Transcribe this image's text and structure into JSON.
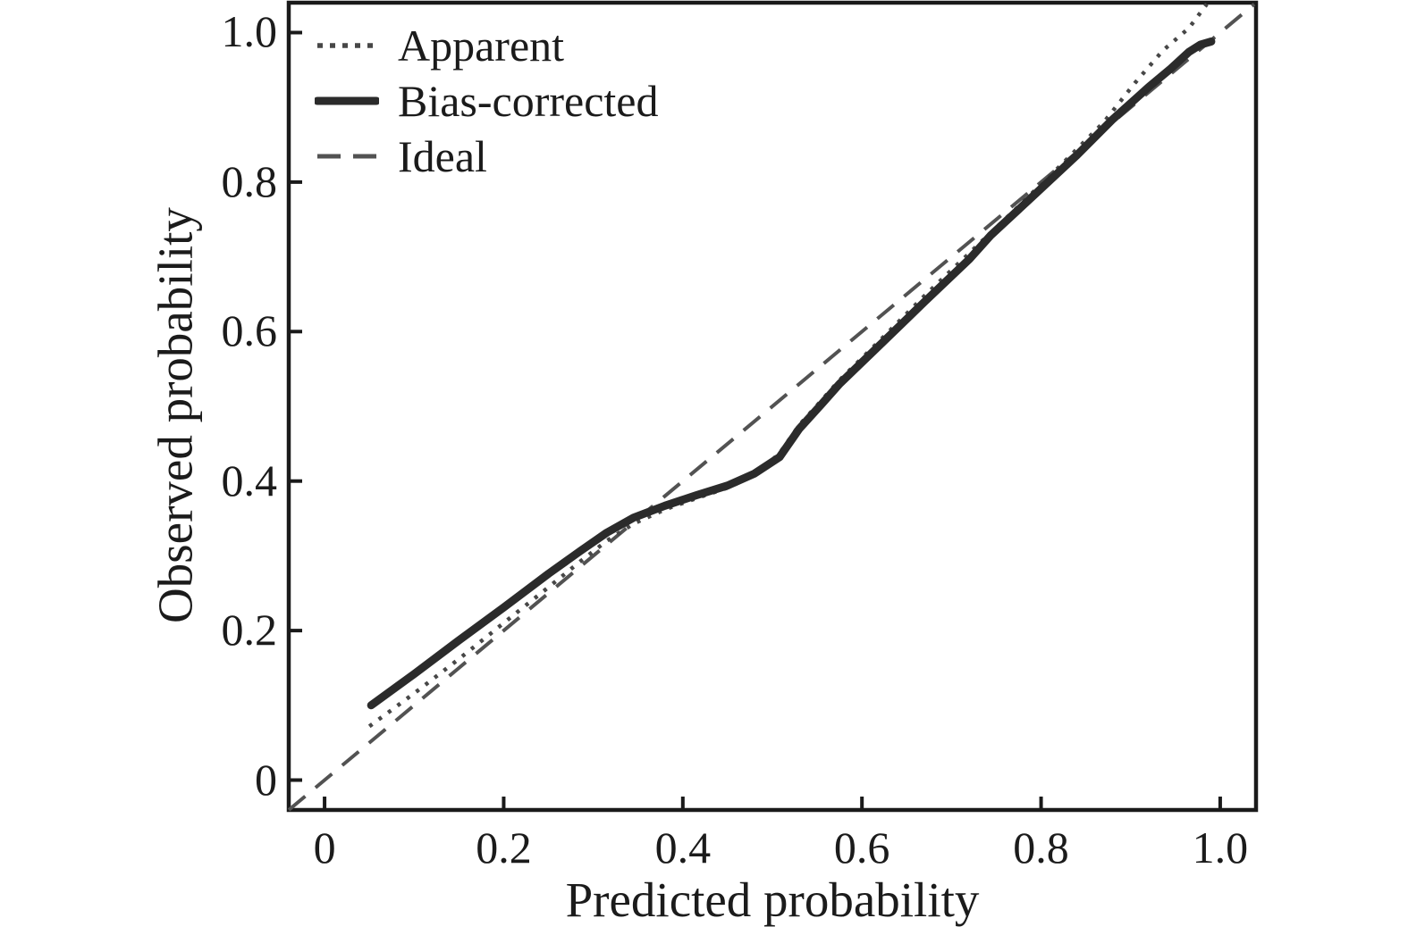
{
  "figure": {
    "background": "#ffffff",
    "x_axis_title": "Predicted probability",
    "y_axis_title": "Observed probability"
  },
  "legend": {
    "position": "top-left",
    "items": [
      {
        "label": "Apparent",
        "style": "dotted"
      },
      {
        "label": "Bias-corrected",
        "style": "solid"
      },
      {
        "label": "Ideal",
        "style": "dashed"
      }
    ]
  },
  "colors": {
    "frame": "#1a1a1a",
    "tick": "#1a1a1a",
    "text": "#1b1b1b",
    "apparent_line": "#474747",
    "bias_corrected_line": "#2b2b2b",
    "ideal_line": "#525252"
  },
  "chart_data": {
    "type": "line",
    "title": "",
    "xlabel": "Predicted probability",
    "ylabel": "Observed probability",
    "xlim": [
      -0.04,
      1.04
    ],
    "ylim": [
      -0.04,
      1.04
    ],
    "grid": false,
    "legend_position": "top-left",
    "x_ticks": [
      0,
      0.2,
      0.4,
      0.6,
      0.8,
      1.0
    ],
    "y_ticks": [
      0,
      0.2,
      0.4,
      0.6,
      0.8,
      1.0
    ],
    "x_tick_labels": [
      "0",
      "0.2",
      "0.4",
      "0.6",
      "0.8",
      "1.0"
    ],
    "y_tick_labels": [
      "0",
      "0.2",
      "0.4",
      "0.6",
      "0.8",
      "1.0"
    ],
    "series": [
      {
        "name": "Apparent",
        "style": "dotted",
        "color": "#474747",
        "points": [
          [
            0.05,
            0.072
          ],
          [
            0.1,
            0.116
          ],
          [
            0.15,
            0.162
          ],
          [
            0.2,
            0.21
          ],
          [
            0.25,
            0.258
          ],
          [
            0.285,
            0.292
          ],
          [
            0.315,
            0.32
          ],
          [
            0.345,
            0.343
          ],
          [
            0.38,
            0.362
          ],
          [
            0.415,
            0.377
          ],
          [
            0.45,
            0.391
          ],
          [
            0.48,
            0.408
          ],
          [
            0.508,
            0.437
          ],
          [
            0.53,
            0.475
          ],
          [
            0.555,
            0.508
          ],
          [
            0.575,
            0.535
          ],
          [
            0.62,
            0.588
          ],
          [
            0.67,
            0.648
          ],
          [
            0.72,
            0.705
          ],
          [
            0.77,
            0.762
          ],
          [
            0.82,
            0.82
          ],
          [
            0.87,
            0.88
          ],
          [
            0.905,
            0.933
          ],
          [
            0.936,
            0.976
          ],
          [
            0.965,
            1.006
          ],
          [
            0.985,
            1.038
          ]
        ]
      },
      {
        "name": "Bias-corrected",
        "style": "solid",
        "color": "#2b2b2b",
        "points": [
          [
            0.052,
            0.1
          ],
          [
            0.1,
            0.142
          ],
          [
            0.15,
            0.187
          ],
          [
            0.2,
            0.231
          ],
          [
            0.25,
            0.276
          ],
          [
            0.285,
            0.306
          ],
          [
            0.315,
            0.331
          ],
          [
            0.345,
            0.351
          ],
          [
            0.38,
            0.367
          ],
          [
            0.415,
            0.381
          ],
          [
            0.45,
            0.394
          ],
          [
            0.48,
            0.41
          ],
          [
            0.508,
            0.432
          ],
          [
            0.53,
            0.47
          ],
          [
            0.555,
            0.503
          ],
          [
            0.575,
            0.53
          ],
          [
            0.62,
            0.582
          ],
          [
            0.67,
            0.64
          ],
          [
            0.72,
            0.697
          ],
          [
            0.744,
            0.729
          ],
          [
            0.79,
            0.78
          ],
          [
            0.84,
            0.836
          ],
          [
            0.88,
            0.884
          ],
          [
            0.92,
            0.927
          ],
          [
            0.945,
            0.952
          ],
          [
            0.965,
            0.974
          ],
          [
            0.978,
            0.984
          ],
          [
            0.99,
            0.988
          ]
        ]
      },
      {
        "name": "Ideal",
        "style": "dashed",
        "color": "#525252",
        "points": [
          [
            -0.04,
            -0.04
          ],
          [
            1.038,
            1.038
          ]
        ]
      }
    ]
  }
}
